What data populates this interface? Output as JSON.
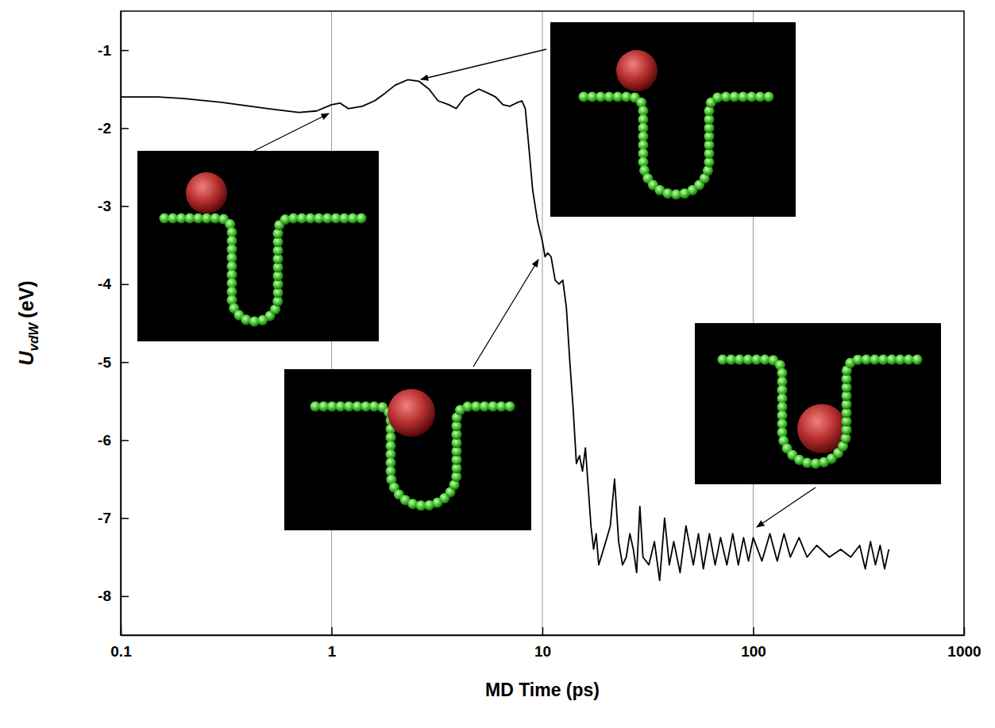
{
  "chart_data": {
    "type": "line",
    "xlabel": "MD Time (ps)",
    "ylabel": {
      "main": "U",
      "sub": "vdW",
      "unit": "(eV)"
    },
    "log": "x",
    "grid": true,
    "color": "#000000",
    "xlim": [
      0.1,
      1000
    ],
    "xticks": [
      0.1,
      1,
      10,
      100,
      1000
    ],
    "ylim": [
      -8.5,
      -0.5
    ],
    "yticks": [
      -1,
      -2,
      -3,
      -4,
      -5,
      -6,
      -7,
      -8
    ],
    "x": [
      0.1,
      0.15,
      0.2,
      0.3,
      0.5,
      0.7,
      0.85,
      1.0,
      1.1,
      1.2,
      1.4,
      1.6,
      1.8,
      2.0,
      2.3,
      2.6,
      2.9,
      3.2,
      3.6,
      3.9,
      4.3,
      5.0,
      5.5,
      6.0,
      6.5,
      7.0,
      7.5,
      8.0,
      8.3,
      8.6,
      9.0,
      9.5,
      10.0,
      10.3,
      10.6,
      11.0,
      11.5,
      12.0,
      12.5,
      13.0,
      13.5,
      14.0,
      14.5,
      15.0,
      15.5,
      16.0,
      16.5,
      17.0,
      17.5,
      18.0,
      18.5,
      19,
      20,
      21,
      22,
      23,
      24,
      25,
      26,
      27,
      28,
      29,
      30,
      32,
      34,
      36,
      38,
      40,
      42,
      45,
      48,
      52,
      55,
      58,
      62,
      66,
      70,
      75,
      80,
      85,
      90,
      95,
      100,
      110,
      120,
      130,
      140,
      150,
      165,
      180,
      200,
      230,
      260,
      290,
      320,
      340,
      360,
      380,
      400,
      420,
      440
    ],
    "values": [
      -1.6,
      -1.6,
      -1.62,
      -1.67,
      -1.75,
      -1.8,
      -1.78,
      -1.7,
      -1.68,
      -1.75,
      -1.72,
      -1.65,
      -1.55,
      -1.45,
      -1.38,
      -1.4,
      -1.5,
      -1.65,
      -1.7,
      -1.75,
      -1.6,
      -1.5,
      -1.55,
      -1.6,
      -1.7,
      -1.72,
      -1.68,
      -1.65,
      -1.75,
      -2.2,
      -2.8,
      -3.2,
      -3.45,
      -3.65,
      -3.6,
      -3.65,
      -3.95,
      -4.0,
      -3.95,
      -4.3,
      -5.0,
      -5.6,
      -6.3,
      -6.2,
      -6.4,
      -6.1,
      -6.6,
      -7.1,
      -7.4,
      -7.2,
      -7.6,
      -7.5,
      -7.3,
      -7.1,
      -6.5,
      -7.3,
      -7.6,
      -7.5,
      -7.2,
      -7.4,
      -7.7,
      -6.85,
      -7.5,
      -7.6,
      -7.3,
      -7.8,
      -7.0,
      -7.6,
      -7.3,
      -7.7,
      -7.1,
      -7.6,
      -7.2,
      -7.65,
      -7.2,
      -7.6,
      -7.25,
      -7.6,
      -7.2,
      -7.6,
      -7.25,
      -7.55,
      -7.25,
      -7.55,
      -7.2,
      -7.55,
      -7.2,
      -7.5,
      -7.25,
      -7.5,
      -7.35,
      -7.5,
      -7.4,
      -7.5,
      -7.35,
      -7.65,
      -7.3,
      -7.6,
      -7.35,
      -7.65,
      -7.4
    ]
  }
}
